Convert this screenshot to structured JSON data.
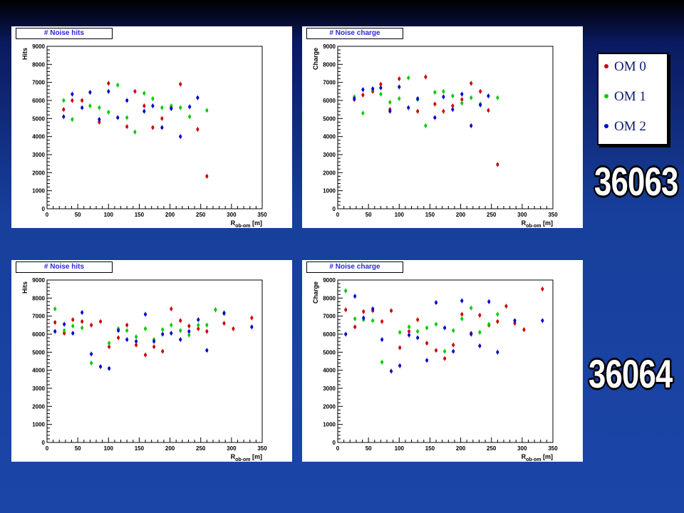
{
  "legend": {
    "entries": [
      {
        "label": "OM 0",
        "color": "#cc0000"
      },
      {
        "label": "OM 1",
        "color": "#00cc00"
      },
      {
        "label": "OM 2",
        "color": "#0000cc"
      }
    ]
  },
  "runs": [
    "36063",
    "36064"
  ],
  "chart_data": [
    {
      "type": "scatter",
      "title": "# Noise hits",
      "xlabel": "R_ob-om [m]",
      "ylabel": "Hits",
      "xlim": [
        0,
        350
      ],
      "ylim": [
        0,
        9000
      ],
      "xticks": [
        0,
        50,
        100,
        150,
        200,
        250,
        300,
        350
      ],
      "yticks": [
        0,
        1000,
        2000,
        3000,
        4000,
        5000,
        6000,
        7000,
        8000,
        9000
      ],
      "series": [
        {
          "name": "OM 0",
          "color": "#cc0000",
          "points": [
            [
              27,
              5500
            ],
            [
              41,
              6000
            ],
            [
              57,
              6000
            ],
            [
              85,
              4800
            ],
            [
              100,
              6950
            ],
            [
              130,
              4550
            ],
            [
              143,
              6500
            ],
            [
              158,
              5700
            ],
            [
              172,
              4500
            ],
            [
              187,
              5000
            ],
            [
              202,
              5600
            ],
            [
              217,
              6900
            ],
            [
              245,
              4400
            ],
            [
              260,
              1800
            ]
          ]
        },
        {
          "name": "OM 1",
          "color": "#00cc00",
          "points": [
            [
              27,
              6000
            ],
            [
              41,
              4950
            ],
            [
              70,
              5700
            ],
            [
              85,
              5600
            ],
            [
              100,
              5350
            ],
            [
              115,
              6850
            ],
            [
              130,
              5050
            ],
            [
              143,
              4250
            ],
            [
              158,
              6400
            ],
            [
              172,
              6100
            ],
            [
              187,
              5600
            ],
            [
              202,
              5700
            ],
            [
              217,
              5600
            ],
            [
              232,
              5100
            ],
            [
              260,
              5450
            ]
          ]
        },
        {
          "name": "OM 2",
          "color": "#0000cc",
          "points": [
            [
              27,
              5100
            ],
            [
              41,
              6350
            ],
            [
              57,
              5600
            ],
            [
              70,
              6450
            ],
            [
              85,
              4950
            ],
            [
              100,
              6500
            ],
            [
              115,
              5050
            ],
            [
              130,
              6000
            ],
            [
              158,
              5400
            ],
            [
              172,
              5700
            ],
            [
              187,
              4500
            ],
            [
              202,
              5550
            ],
            [
              217,
              4000
            ],
            [
              232,
              5650
            ],
            [
              245,
              6150
            ]
          ]
        }
      ]
    },
    {
      "type": "scatter",
      "title": "# Noise charge",
      "xlabel": "R_ob-om [m]",
      "ylabel": "Charge",
      "xlim": [
        0,
        350
      ],
      "ylim": [
        0,
        9000
      ],
      "xticks": [
        0,
        50,
        100,
        150,
        200,
        250,
        300,
        350
      ],
      "yticks": [
        0,
        1000,
        2000,
        3000,
        4000,
        5000,
        6000,
        7000,
        8000,
        9000
      ],
      "series": [
        {
          "name": "OM 0",
          "color": "#cc0000",
          "points": [
            [
              27,
              6050
            ],
            [
              41,
              6300
            ],
            [
              57,
              6500
            ],
            [
              70,
              6900
            ],
            [
              85,
              5500
            ],
            [
              100,
              7200
            ],
            [
              130,
              5400
            ],
            [
              143,
              7300
            ],
            [
              158,
              5800
            ],
            [
              172,
              5400
            ],
            [
              187,
              5700
            ],
            [
              202,
              6050
            ],
            [
              217,
              6950
            ],
            [
              232,
              6500
            ],
            [
              245,
              5450
            ],
            [
              260,
              2450
            ]
          ]
        },
        {
          "name": "OM 1",
          "color": "#00cc00",
          "points": [
            [
              27,
              6200
            ],
            [
              41,
              5300
            ],
            [
              57,
              6600
            ],
            [
              70,
              6350
            ],
            [
              85,
              5900
            ],
            [
              100,
              6100
            ],
            [
              115,
              7250
            ],
            [
              130,
              6050
            ],
            [
              143,
              4600
            ],
            [
              158,
              6450
            ],
            [
              172,
              6500
            ],
            [
              187,
              6250
            ],
            [
              202,
              5850
            ],
            [
              217,
              6150
            ],
            [
              232,
              5800
            ],
            [
              260,
              6150
            ]
          ]
        },
        {
          "name": "OM 2",
          "color": "#0000cc",
          "points": [
            [
              27,
              6100
            ],
            [
              41,
              6600
            ],
            [
              57,
              6650
            ],
            [
              70,
              6700
            ],
            [
              85,
              5400
            ],
            [
              100,
              6750
            ],
            [
              115,
              5600
            ],
            [
              130,
              6100
            ],
            [
              158,
              5050
            ],
            [
              172,
              6200
            ],
            [
              187,
              5500
            ],
            [
              202,
              6350
            ],
            [
              217,
              4600
            ],
            [
              232,
              5750
            ],
            [
              245,
              6250
            ]
          ]
        }
      ]
    },
    {
      "type": "scatter",
      "title": "# Noise hits",
      "xlabel": "R_ob-om [m]",
      "ylabel": "Hits",
      "xlim": [
        0,
        350
      ],
      "ylim": [
        0,
        9000
      ],
      "xticks": [
        0,
        50,
        100,
        150,
        200,
        250,
        300,
        350
      ],
      "yticks": [
        0,
        1000,
        2000,
        3000,
        4000,
        5000,
        6000,
        7000,
        8000,
        9000
      ],
      "series": [
        {
          "name": "OM 0",
          "color": "#cc0000",
          "points": [
            [
              13,
              6650
            ],
            [
              28,
              6050
            ],
            [
              42,
              6800
            ],
            [
              57,
              6700
            ],
            [
              72,
              6500
            ],
            [
              87,
              6700
            ],
            [
              101,
              5300
            ],
            [
              116,
              5800
            ],
            [
              130,
              6500
            ],
            [
              145,
              5400
            ],
            [
              160,
              4850
            ],
            [
              174,
              5300
            ],
            [
              188,
              5050
            ],
            [
              202,
              7400
            ],
            [
              217,
              6750
            ],
            [
              231,
              6450
            ],
            [
              246,
              6300
            ],
            [
              260,
              6150
            ],
            [
              274,
              7350
            ],
            [
              288,
              6600
            ],
            [
              303,
              6300
            ],
            [
              333,
              6900
            ]
          ]
        },
        {
          "name": "OM 1",
          "color": "#00cc00",
          "points": [
            [
              13,
              7400
            ],
            [
              28,
              6200
            ],
            [
              42,
              6450
            ],
            [
              57,
              6350
            ],
            [
              72,
              4400
            ],
            [
              101,
              5500
            ],
            [
              116,
              6300
            ],
            [
              130,
              6200
            ],
            [
              145,
              5850
            ],
            [
              160,
              6300
            ],
            [
              174,
              5700
            ],
            [
              188,
              6250
            ],
            [
              202,
              6500
            ],
            [
              217,
              6200
            ],
            [
              231,
              5950
            ],
            [
              246,
              6500
            ],
            [
              260,
              6500
            ],
            [
              274,
              7350
            ],
            [
              288,
              7200
            ]
          ]
        },
        {
          "name": "OM 2",
          "color": "#0000cc",
          "points": [
            [
              13,
              6150
            ],
            [
              28,
              6550
            ],
            [
              42,
              6050
            ],
            [
              57,
              7200
            ],
            [
              72,
              4900
            ],
            [
              87,
              4200
            ],
            [
              101,
              4100
            ],
            [
              116,
              6200
            ],
            [
              130,
              5700
            ],
            [
              145,
              5600
            ],
            [
              160,
              7100
            ],
            [
              174,
              5600
            ],
            [
              188,
              6000
            ],
            [
              202,
              6050
            ],
            [
              217,
              5700
            ],
            [
              231,
              6150
            ],
            [
              246,
              6800
            ],
            [
              260,
              5100
            ],
            [
              288,
              7150
            ],
            [
              333,
              6400
            ]
          ]
        }
      ]
    },
    {
      "type": "scatter",
      "title": "# Noise charge",
      "xlabel": "R_ob-om [m]",
      "ylabel": "Charge",
      "xlim": [
        0,
        350
      ],
      "ylim": [
        0,
        9000
      ],
      "xticks": [
        0,
        50,
        100,
        150,
        200,
        250,
        300,
        350
      ],
      "yticks": [
        0,
        1000,
        2000,
        3000,
        4000,
        5000,
        6000,
        7000,
        8000,
        9000
      ],
      "series": [
        {
          "name": "OM 0",
          "color": "#cc0000",
          "points": [
            [
              13,
              7350
            ],
            [
              28,
              6400
            ],
            [
              42,
              7250
            ],
            [
              57,
              7300
            ],
            [
              72,
              6700
            ],
            [
              87,
              7300
            ],
            [
              101,
              5250
            ],
            [
              116,
              6150
            ],
            [
              130,
              6800
            ],
            [
              145,
              5500
            ],
            [
              160,
              5100
            ],
            [
              174,
              4650
            ],
            [
              188,
              5400
            ],
            [
              202,
              7100
            ],
            [
              217,
              6050
            ],
            [
              231,
              7050
            ],
            [
              246,
              6500
            ],
            [
              260,
              6700
            ],
            [
              274,
              7550
            ],
            [
              288,
              6600
            ],
            [
              303,
              6250
            ],
            [
              333,
              8500
            ]
          ]
        },
        {
          "name": "OM 1",
          "color": "#00cc00",
          "points": [
            [
              13,
              8400
            ],
            [
              28,
              6850
            ],
            [
              42,
              6800
            ],
            [
              57,
              6750
            ],
            [
              72,
              4450
            ],
            [
              101,
              6100
            ],
            [
              116,
              6400
            ],
            [
              130,
              6150
            ],
            [
              145,
              6350
            ],
            [
              160,
              6550
            ],
            [
              174,
              5050
            ],
            [
              188,
              6200
            ],
            [
              202,
              6850
            ],
            [
              217,
              7450
            ],
            [
              231,
              6100
            ],
            [
              246,
              6550
            ],
            [
              260,
              7100
            ]
          ]
        },
        {
          "name": "OM 2",
          "color": "#0000cc",
          "points": [
            [
              13,
              6000
            ],
            [
              28,
              8100
            ],
            [
              42,
              6900
            ],
            [
              57,
              7400
            ],
            [
              72,
              5700
            ],
            [
              87,
              3950
            ],
            [
              101,
              4250
            ],
            [
              116,
              5950
            ],
            [
              130,
              5800
            ],
            [
              145,
              4550
            ],
            [
              160,
              7750
            ],
            [
              174,
              6350
            ],
            [
              188,
              5050
            ],
            [
              202,
              7850
            ],
            [
              217,
              6000
            ],
            [
              231,
              5350
            ],
            [
              246,
              7800
            ],
            [
              260,
              5000
            ],
            [
              288,
              6750
            ],
            [
              333,
              6750
            ]
          ]
        }
      ]
    }
  ]
}
